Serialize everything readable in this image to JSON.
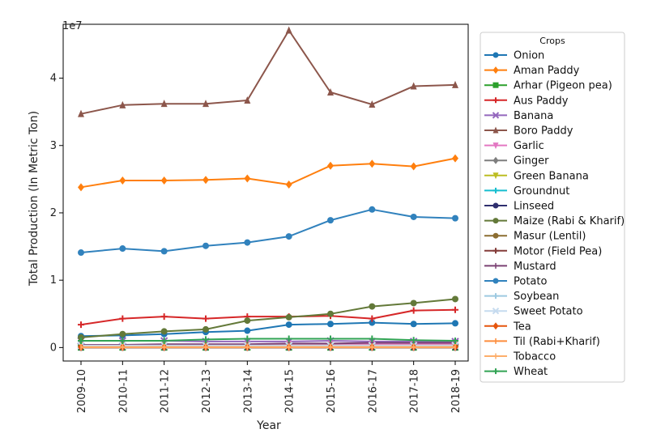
{
  "chart_data": {
    "type": "line",
    "xlabel": "Year",
    "ylabel": "Total Production (In Metric Ton)",
    "y_offset_label": "1e7",
    "ylim": [
      -2000000,
      48000000
    ],
    "yticks": [
      0,
      10000000,
      20000000,
      30000000,
      40000000
    ],
    "ytick_labels": [
      "0",
      "1",
      "2",
      "3",
      "4"
    ],
    "categories": [
      "2009-10",
      "2010-11",
      "2011-12",
      "2012-13",
      "2013-14",
      "2014-15",
      "2015-16",
      "2016-17",
      "2017-18",
      "2018-19"
    ],
    "grid": false,
    "legend": {
      "title": "Crops",
      "placement": "outside-right"
    },
    "series": [
      {
        "name": " Onion",
        "color": "#1f77b4",
        "marker": "circle",
        "values": [
          1700000,
          1800000,
          2000000,
          2300000,
          2500000,
          3400000,
          3500000,
          3700000,
          3500000,
          3600000
        ]
      },
      {
        "name": "Aman Paddy",
        "color": "#ff7f0e",
        "marker": "diamond",
        "values": [
          23800000,
          24800000,
          24800000,
          24900000,
          25100000,
          24200000,
          27000000,
          27300000,
          26900000,
          28100000
        ]
      },
      {
        "name": "Arhar (Pigeon pea)",
        "color": "#2ca02c",
        "marker": "square",
        "values": [
          20000,
          20000,
          20000,
          20000,
          20000,
          20000,
          20000,
          20000,
          20000,
          20000
        ]
      },
      {
        "name": "Aus Paddy",
        "color": "#d62728",
        "marker": "plus",
        "values": [
          3400000,
          4300000,
          4600000,
          4300000,
          4600000,
          4600000,
          4700000,
          4300000,
          5500000,
          5600000
        ]
      },
      {
        "name": "Banana",
        "color": "#9467bd",
        "marker": "x",
        "values": [
          1000000,
          1000000,
          1000000,
          900000,
          900000,
          900000,
          1000000,
          900000,
          900000,
          900000
        ]
      },
      {
        "name": "Boro Paddy",
        "color": "#8c564b",
        "marker": "triangle",
        "values": [
          34700000,
          36000000,
          36200000,
          36200000,
          36700000,
          47100000,
          37900000,
          36100000,
          38800000,
          39000000
        ]
      },
      {
        "name": "Garlic",
        "color": "#e377c2",
        "marker": "triangle-down",
        "values": [
          200000,
          200000,
          300000,
          300000,
          400000,
          500000,
          500000,
          500000,
          500000,
          500000
        ]
      },
      {
        "name": "Ginger",
        "color": "#7f7f7f",
        "marker": "diamond",
        "values": [
          60000,
          70000,
          70000,
          70000,
          70000,
          70000,
          70000,
          80000,
          80000,
          80000
        ]
      },
      {
        "name": "Green Banana",
        "color": "#bcbd22",
        "marker": "triangle-down",
        "values": [
          300000,
          300000,
          300000,
          300000,
          300000,
          300000,
          300000,
          300000,
          300000,
          300000
        ]
      },
      {
        "name": "Groundnut",
        "color": "#17becf",
        "marker": "plus",
        "values": [
          60000,
          60000,
          60000,
          60000,
          60000,
          60000,
          60000,
          60000,
          60000,
          60000
        ]
      },
      {
        "name": "Linseed",
        "color": "#2e2e6e",
        "marker": "circle",
        "values": [
          10000,
          10000,
          10000,
          10000,
          10000,
          10000,
          10000,
          10000,
          10000,
          10000
        ]
      },
      {
        "name": "Maize (Rabi & Kharif)",
        "color": "#637939",
        "marker": "circle",
        "values": [
          1500000,
          2000000,
          2400000,
          2700000,
          4000000,
          4500000,
          5000000,
          6100000,
          6600000,
          7200000
        ]
      },
      {
        "name": "Masur  (Lentil)",
        "color": "#8c6d31",
        "marker": "circle",
        "values": [
          100000,
          100000,
          100000,
          100000,
          200000,
          200000,
          200000,
          200000,
          200000,
          200000
        ]
      },
      {
        "name": "Motor (Field Pea)",
        "color": "#843c39",
        "marker": "plus",
        "values": [
          10000,
          10000,
          10000,
          10000,
          10000,
          10000,
          10000,
          10000,
          10000,
          10000
        ]
      },
      {
        "name": "Mustard",
        "color": "#7b4173",
        "marker": "line",
        "values": [
          400000,
          400000,
          500000,
          500000,
          500000,
          600000,
          600000,
          700000,
          700000,
          700000
        ]
      },
      {
        "name": "Potato",
        "color": "#3182bd",
        "marker": "circle",
        "values": [
          14100000,
          14700000,
          14300000,
          15100000,
          15600000,
          16500000,
          18900000,
          20500000,
          19400000,
          19200000
        ]
      },
      {
        "name": "Soybean",
        "color": "#9ecae1",
        "marker": "plus",
        "values": [
          50000,
          50000,
          50000,
          50000,
          50000,
          50000,
          50000,
          50000,
          50000,
          50000
        ]
      },
      {
        "name": "Sweet Potato",
        "color": "#c6dbef",
        "marker": "x",
        "values": [
          300000,
          300000,
          300000,
          300000,
          300000,
          300000,
          300000,
          300000,
          300000,
          300000
        ]
      },
      {
        "name": "Tea",
        "color": "#e6550d",
        "marker": "diamond",
        "values": [
          60000,
          60000,
          60000,
          60000,
          60000,
          60000,
          80000,
          80000,
          80000,
          90000
        ]
      },
      {
        "name": "Til (Rabi+Kharif)",
        "color": "#fd8d3c",
        "marker": "line",
        "values": [
          30000,
          30000,
          30000,
          30000,
          30000,
          30000,
          30000,
          30000,
          30000,
          30000
        ]
      },
      {
        "name": "Tobacco",
        "color": "#fdae6b",
        "marker": "line",
        "values": [
          90000,
          90000,
          90000,
          90000,
          90000,
          90000,
          90000,
          90000,
          90000,
          90000
        ]
      },
      {
        "name": "Wheat",
        "color": "#31a354",
        "marker": "plus",
        "values": [
          1000000,
          1000000,
          1000000,
          1200000,
          1300000,
          1300000,
          1300000,
          1300000,
          1100000,
          1000000
        ]
      }
    ]
  }
}
